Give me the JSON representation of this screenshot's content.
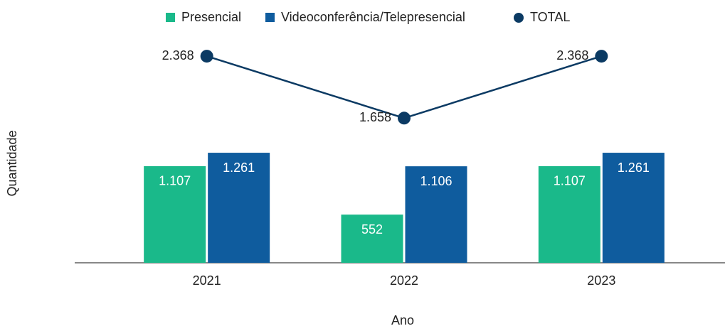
{
  "chart_data": {
    "type": "bar",
    "categories": [
      "2021",
      "2022",
      "2023"
    ],
    "series": [
      {
        "name": "Presencial",
        "color": "#1ab98a",
        "values": [
          1107,
          552,
          1107
        ],
        "value_labels": [
          "1.107",
          "552",
          "1.107"
        ]
      },
      {
        "name": "Videoconferência/Telepresencial",
        "color": "#0f5c9e",
        "values": [
          1261,
          1106,
          1261
        ],
        "value_labels": [
          "1.261",
          "1.106",
          "1.261"
        ]
      },
      {
        "name": "TOTAL",
        "color": "#0b3a63",
        "type": "line",
        "values": [
          2368,
          1658,
          2368
        ],
        "value_labels": [
          "2.368",
          "1.658",
          "2.368"
        ]
      }
    ],
    "xlabel": "Ano",
    "ylabel": "Quantidade",
    "ylim": [
      0,
      2800
    ],
    "legend": "top"
  }
}
